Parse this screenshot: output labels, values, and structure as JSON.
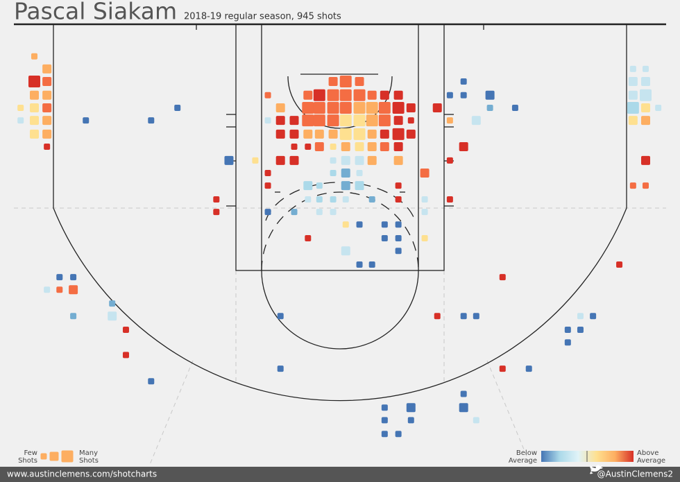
{
  "chart_data": {
    "type": "scatter",
    "title": "Pascal Siakam",
    "subtitle": "2018-19 regular season, 945 shots",
    "xlim": [
      -29.7,
      29.7
    ],
    "ylim": [
      0,
      40
    ],
    "x": [
      -26.7,
      -25.6,
      -26.7,
      -25.6,
      -26.7,
      -25.6,
      -27.9,
      -26.7,
      -25.6,
      -27.9,
      -26.7,
      -25.6,
      -26.7,
      -25.6,
      -25.6,
      -0.6,
      0.5,
      1.7,
      -6.3,
      -2.8,
      -1.8,
      -0.6,
      0.5,
      1.7,
      2.8,
      3.9,
      5.1,
      -5.2,
      -2.8,
      -1.8,
      -0.6,
      0.5,
      1.7,
      2.8,
      3.9,
      5.1,
      6.2,
      8.5,
      -6.3,
      -5.2,
      -4,
      -2.8,
      -1.8,
      -0.6,
      0.5,
      1.7,
      2.8,
      3.9,
      5.1,
      6.2,
      -5.2,
      -4,
      -2.8,
      -1.8,
      -0.6,
      0.5,
      1.7,
      2.8,
      3.9,
      5.1,
      6.2,
      -4,
      -2.8,
      -1.8,
      -0.6,
      0.5,
      1.7,
      2.8,
      3.9,
      5.1,
      -9.7,
      -7.4,
      -5.2,
      -4,
      -0.6,
      0.5,
      1.7,
      2.8,
      5.1,
      -6.3,
      -0.6,
      0.5,
      1.7,
      7.4,
      -6.3,
      -2.8,
      -1.8,
      0.5,
      1.7,
      5.1,
      -10.8,
      -2.8,
      -1.8,
      -0.6,
      0.5,
      2.8,
      5.1,
      7.4,
      9.6,
      -10.8,
      -6.3,
      -4,
      -1.8,
      -0.6,
      7.4,
      0.5,
      1.7,
      3.9,
      5.1,
      -2.8,
      3.9,
      5.1,
      7.4,
      0.5,
      5.1,
      1.7,
      2.8,
      10.8,
      9.6,
      10.8,
      13.1,
      13.1,
      15.3,
      9.6,
      11.9,
      10.8,
      9.6,
      26.7,
      25.6,
      26.7,
      25.6,
      26.7,
      25.6,
      26.7,
      25.6,
      26.7,
      25.6,
      26.7,
      27.8,
      25.6,
      26.7,
      -14.2,
      -22.2,
      -16.5,
      -24.5,
      -23.3,
      -25.6,
      -24.5,
      -23.3,
      -19.9,
      -23.3,
      -19.9,
      -18.7,
      -18.7,
      -16.5,
      -5.2,
      -5.2,
      24.4,
      14.2,
      8.5,
      10.8,
      11.9,
      21,
      22.1,
      19.9,
      21,
      19.9,
      14.2,
      16.5,
      10.8,
      3.9,
      6.2,
      10.8,
      3.9,
      6.2,
      11.9,
      3.9,
      5.1
    ],
    "values": [
      2.8,
      3.9,
      5,
      5,
      6.2,
      6.2,
      7.3,
      7.3,
      7.3,
      8.4,
      8.4,
      8.4,
      9.6,
      9.6,
      10.7,
      5,
      5,
      5,
      6.2,
      6.2,
      6.2,
      6.2,
      6.2,
      6.2,
      6.2,
      6.2,
      6.2,
      7.3,
      7.3,
      7.3,
      7.3,
      7.3,
      7.3,
      7.3,
      7.3,
      7.3,
      7.3,
      7.3,
      8.4,
      8.4,
      8.4,
      8.4,
      8.4,
      8.4,
      8.4,
      8.4,
      8.4,
      8.4,
      8.4,
      8.4,
      9.6,
      9.6,
      9.6,
      9.6,
      9.6,
      9.6,
      9.6,
      9.6,
      9.6,
      9.6,
      9.6,
      10.7,
      10.7,
      10.7,
      10.7,
      10.7,
      10.7,
      10.7,
      10.7,
      10.7,
      11.9,
      11.9,
      11.9,
      11.9,
      11.9,
      11.9,
      11.9,
      11.9,
      11.9,
      13,
      13,
      13,
      13,
      13,
      14.1,
      14.1,
      14.1,
      14.1,
      14.1,
      14.1,
      15.3,
      15.3,
      15.3,
      15.3,
      15.3,
      15.3,
      15.3,
      15.3,
      15.3,
      16.4,
      16.4,
      16.4,
      16.4,
      16.4,
      16.4,
      17.5,
      17.5,
      17.5,
      17.5,
      18.7,
      18.7,
      18.7,
      18.7,
      19.8,
      19.8,
      21,
      21,
      5,
      6.2,
      6.2,
      6.2,
      7.3,
      7.3,
      8.4,
      8.4,
      10.7,
      11.9,
      11.9,
      14.1,
      14.1,
      3.9,
      3.9,
      5,
      5,
      6.2,
      6.2,
      7.3,
      7.3,
      7.3,
      8.4,
      8.4,
      7.3,
      8.4,
      8.4,
      22.1,
      22.1,
      23.2,
      23.2,
      23.2,
      24.4,
      25.5,
      25.5,
      26.7,
      28.9,
      31.2,
      25.5,
      30.1,
      21,
      22.1,
      25.5,
      25.5,
      25.5,
      25.5,
      25.5,
      26.7,
      26.7,
      27.8,
      30.1,
      30.1,
      32.3,
      33.5,
      33.5,
      33.5,
      34.6,
      34.6,
      34.6,
      35.8,
      35.8
    ],
    "sizes": [
      1,
      2,
      3,
      2,
      2,
      2,
      1,
      2,
      2,
      1,
      2,
      2,
      2,
      2,
      1,
      2,
      3,
      2,
      1,
      2,
      3,
      3,
      3,
      3,
      2,
      2,
      2,
      2,
      3,
      3,
      3,
      3,
      3,
      3,
      3,
      3,
      2,
      2,
      1,
      2,
      2,
      3,
      3,
      3,
      3,
      3,
      3,
      3,
      2,
      1,
      2,
      2,
      2,
      2,
      2,
      3,
      3,
      2,
      2,
      3,
      2,
      1,
      1,
      2,
      1,
      2,
      2,
      2,
      2,
      2,
      2,
      1,
      2,
      2,
      1,
      2,
      2,
      2,
      2,
      1,
      1,
      2,
      1,
      2,
      1,
      2,
      1,
      2,
      2,
      1,
      1,
      1,
      1,
      1,
      1,
      1,
      1,
      1,
      1,
      1,
      1,
      1,
      1,
      1,
      1,
      1,
      1,
      1,
      1,
      1,
      1,
      1,
      1,
      2,
      1,
      1,
      1,
      1,
      1,
      1,
      2,
      1,
      1,
      1,
      2,
      2,
      1,
      2,
      1,
      1,
      1,
      1,
      2,
      2,
      2,
      3,
      3,
      2,
      1,
      2,
      2,
      1,
      1,
      1,
      1,
      1,
      1,
      1,
      2,
      1,
      1,
      2,
      1,
      1,
      1,
      1,
      1,
      1,
      1,
      1,
      1,
      1,
      1,
      1,
      1,
      1,
      1,
      1,
      1,
      1,
      1,
      2,
      2,
      1,
      1,
      1,
      1,
      1
    ],
    "colors": [
      "#fdae61",
      "#fdae61",
      "#d73027",
      "#f46d43",
      "#fdae61",
      "#fdae61",
      "#fee090",
      "#fee090",
      "#f46d43",
      "#c6e4ef",
      "#fee090",
      "#fdae61",
      "#fee090",
      "#fdae61",
      "#d73027",
      "#f46d43",
      "#f46d43",
      "#f46d43",
      "#f46d43",
      "#f46d43",
      "#d73027",
      "#f46d43",
      "#f46d43",
      "#f46d43",
      "#f46d43",
      "#d73027",
      "#d73027",
      "#fdae61",
      "#f46d43",
      "#f46d43",
      "#f46d43",
      "#f46d43",
      "#fdae61",
      "#fdae61",
      "#f46d43",
      "#d73027",
      "#d73027",
      "#d73027",
      "#c6e4ef",
      "#d73027",
      "#d73027",
      "#f46d43",
      "#f46d43",
      "#f46d43",
      "#fee090",
      "#fee090",
      "#fdae61",
      "#f46d43",
      "#d73027",
      "#d73027",
      "#d73027",
      "#d73027",
      "#fdae61",
      "#fdae61",
      "#fdae61",
      "#fee090",
      "#fee090",
      "#fdae61",
      "#d73027",
      "#d73027",
      "#d73027",
      "#d73027",
      "#d73027",
      "#f46d43",
      "#fee090",
      "#fdae61",
      "#fee090",
      "#fdae61",
      "#f46d43",
      "#d73027",
      "#4575b4",
      "#fee090",
      "#d73027",
      "#d73027",
      "#c6e4ef",
      "#c6e4ef",
      "#c6e4ef",
      "#fdae61",
      "#fdae61",
      "#d73027",
      "#abd9e9",
      "#74add1",
      "#c6e4ef",
      "#f46d43",
      "#d73027",
      "#abd9e9",
      "#abd9e9",
      "#74add1",
      "#abd9e9",
      "#d73027",
      "#d73027",
      "#c6e4ef",
      "#abd9e9",
      "#abd9e9",
      "#c6e4ef",
      "#74add1",
      "#d73027",
      "#c6e4ef",
      "#d73027",
      "#d73027",
      "#4575b4",
      "#74add1",
      "#c6e4ef",
      "#c6e4ef",
      "#c6e4ef",
      "#fee090",
      "#4575b4",
      "#4575b4",
      "#4575b4",
      "#d73027",
      "#4575b4",
      "#4575b4",
      "#fee090",
      "#c6e4ef",
      "#4575b4",
      "#4575b4",
      "#4575b4",
      "#4575b4",
      "#4575b4",
      "#4575b4",
      "#4575b4",
      "#74add1",
      "#4575b4",
      "#fdae61",
      "#c6e4ef",
      "#d73027",
      "#d73027",
      "#d73027",
      "#f46d43",
      "#f46d43",
      "#c6e4ef",
      "#c6e4ef",
      "#c6e4ef",
      "#c6e4ef",
      "#c6e4ef",
      "#c6e4ef",
      "#abd9e9",
      "#fee090",
      "#c6e4ef",
      "#fee090",
      "#fdae61",
      "#4575b4",
      "#4575b4",
      "#4575b4",
      "#4575b4",
      "#4575b4",
      "#c6e4ef",
      "#f46d43",
      "#f46d43",
      "#74add1",
      "#74add1",
      "#c6e4ef",
      "#d73027",
      "#d73027",
      "#4575b4",
      "#4575b4",
      "#4575b4",
      "#d73027",
      "#d73027",
      "#d73027",
      "#4575b4",
      "#4575b4",
      "#c6e4ef",
      "#4575b4",
      "#4575b4",
      "#4575b4",
      "#4575b4",
      "#d73027",
      "#4575b4",
      "#4575b4",
      "#4575b4",
      "#4575b4",
      "#4575b4",
      "#4575b4",
      "#4575b4",
      "#c6e4ef",
      "#4575b4",
      "#4575b4"
    ],
    "size_legend": {
      "low": [
        "Few",
        "Shots"
      ],
      "high": [
        "Many",
        "Shots"
      ],
      "color": "#fdae61"
    },
    "color_legend": {
      "low": [
        "Below",
        "Average"
      ],
      "high": [
        "Above",
        "Average"
      ],
      "scale": [
        "#4575b4",
        "#abd9e9",
        "#e0f3f8",
        "#fee090",
        "#fdae61",
        "#d73027"
      ]
    },
    "footer": {
      "left": "www.austinclemens.com/shotcharts",
      "right": "@AustinClemens2"
    }
  }
}
